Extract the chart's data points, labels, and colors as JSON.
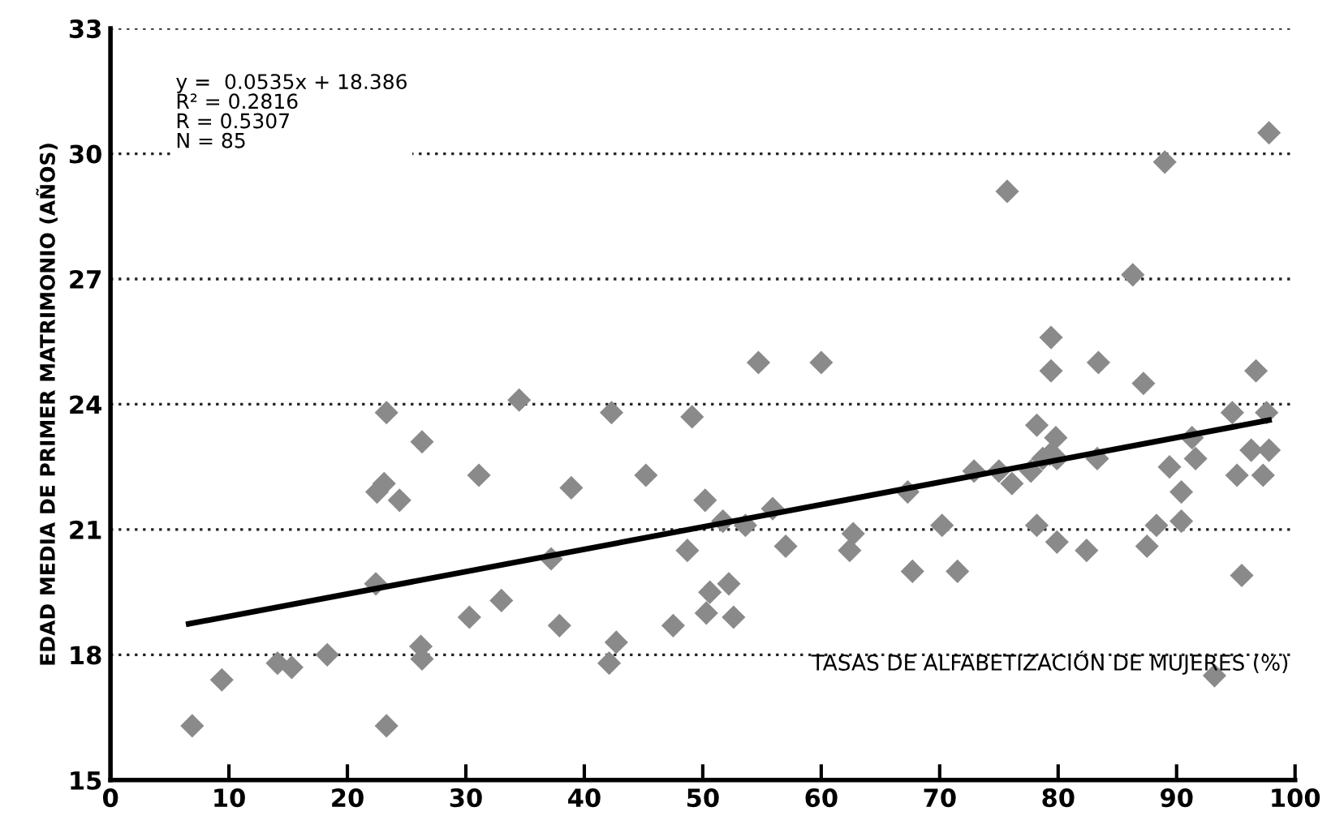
{
  "chart_data": {
    "type": "scatter",
    "xlabel": "TASAS DE ALFABETIZACIÓN DE MUJERES (%)",
    "ylabel": "EDAD MEDIA DE PRIMER MATRIMONIO (AÑOS)",
    "annotations": [
      "y =  0.0535x + 18.386\nR² = 0.2816\nR = 0.5307\nN = 85"
    ],
    "xlim": [
      0,
      100
    ],
    "ylim": [
      15,
      33
    ],
    "xticks": [
      0,
      10,
      20,
      30,
      40,
      50,
      60,
      70,
      80,
      90,
      100
    ],
    "yticks": [
      15,
      18,
      21,
      24,
      27,
      30,
      33
    ],
    "grid": "y",
    "legend": false,
    "series": [
      {
        "marker": "diamond",
        "color": "#8a8a8a",
        "x": [
          6.9,
          9.4,
          14.1,
          15.3,
          18.3,
          23.3,
          26.2,
          26.3,
          30.3,
          33.0,
          22.4,
          23.3,
          26.3,
          31.1,
          23.1,
          22.5,
          24.4,
          34.5,
          42.3,
          49.1,
          54.7,
          60.0,
          38.9,
          45.2,
          50.2,
          51.7,
          53.6,
          55.9,
          67.3,
          37.2,
          48.7,
          57.0,
          62.7,
          62.4,
          37.9,
          50.6,
          52.2,
          50.3,
          52.6,
          47.5,
          42.7,
          42.1,
          67.7,
          79.4,
          83.4,
          87.2,
          96.7,
          94.7,
          97.6,
          78.2,
          79.8,
          79.3,
          79.9,
          78.7,
          91.3,
          83.3,
          72.9,
          75.0,
          76.1,
          77.7,
          89.4,
          91.6,
          96.3,
          97.8,
          95.1,
          97.3,
          90.4,
          70.2,
          78.2,
          88.3,
          90.4,
          79.9,
          82.4,
          87.5,
          71.5,
          95.5,
          93.2,
          97.8,
          89.0,
          75.7,
          86.3,
          79.4
        ],
        "values": [
          16.3,
          17.4,
          17.8,
          17.7,
          18.0,
          16.3,
          18.2,
          17.9,
          18.9,
          19.3,
          19.7,
          23.8,
          23.1,
          22.3,
          22.1,
          21.9,
          21.7,
          24.1,
          23.8,
          23.7,
          25.0,
          25.0,
          22.0,
          22.3,
          21.7,
          21.2,
          21.1,
          21.5,
          21.9,
          20.3,
          20.5,
          20.6,
          20.9,
          20.5,
          18.7,
          19.5,
          19.7,
          19.0,
          18.9,
          18.7,
          18.3,
          17.8,
          20.0,
          24.8,
          25.0,
          24.5,
          24.8,
          23.8,
          23.8,
          23.5,
          23.2,
          22.8,
          22.7,
          22.7,
          23.2,
          22.7,
          22.4,
          22.4,
          22.1,
          22.4,
          22.5,
          22.7,
          22.9,
          22.9,
          22.3,
          22.3,
          21.9,
          21.1,
          21.1,
          21.1,
          21.2,
          20.7,
          20.5,
          20.6,
          20.0,
          19.9,
          17.5,
          30.5,
          29.8,
          29.1,
          27.1,
          25.6
        ]
      },
      {
        "type": "line",
        "marker": "none",
        "color": "#000000",
        "x": [
          6.6,
          97.8
        ],
        "values": [
          18.74,
          23.62
        ]
      }
    ]
  }
}
